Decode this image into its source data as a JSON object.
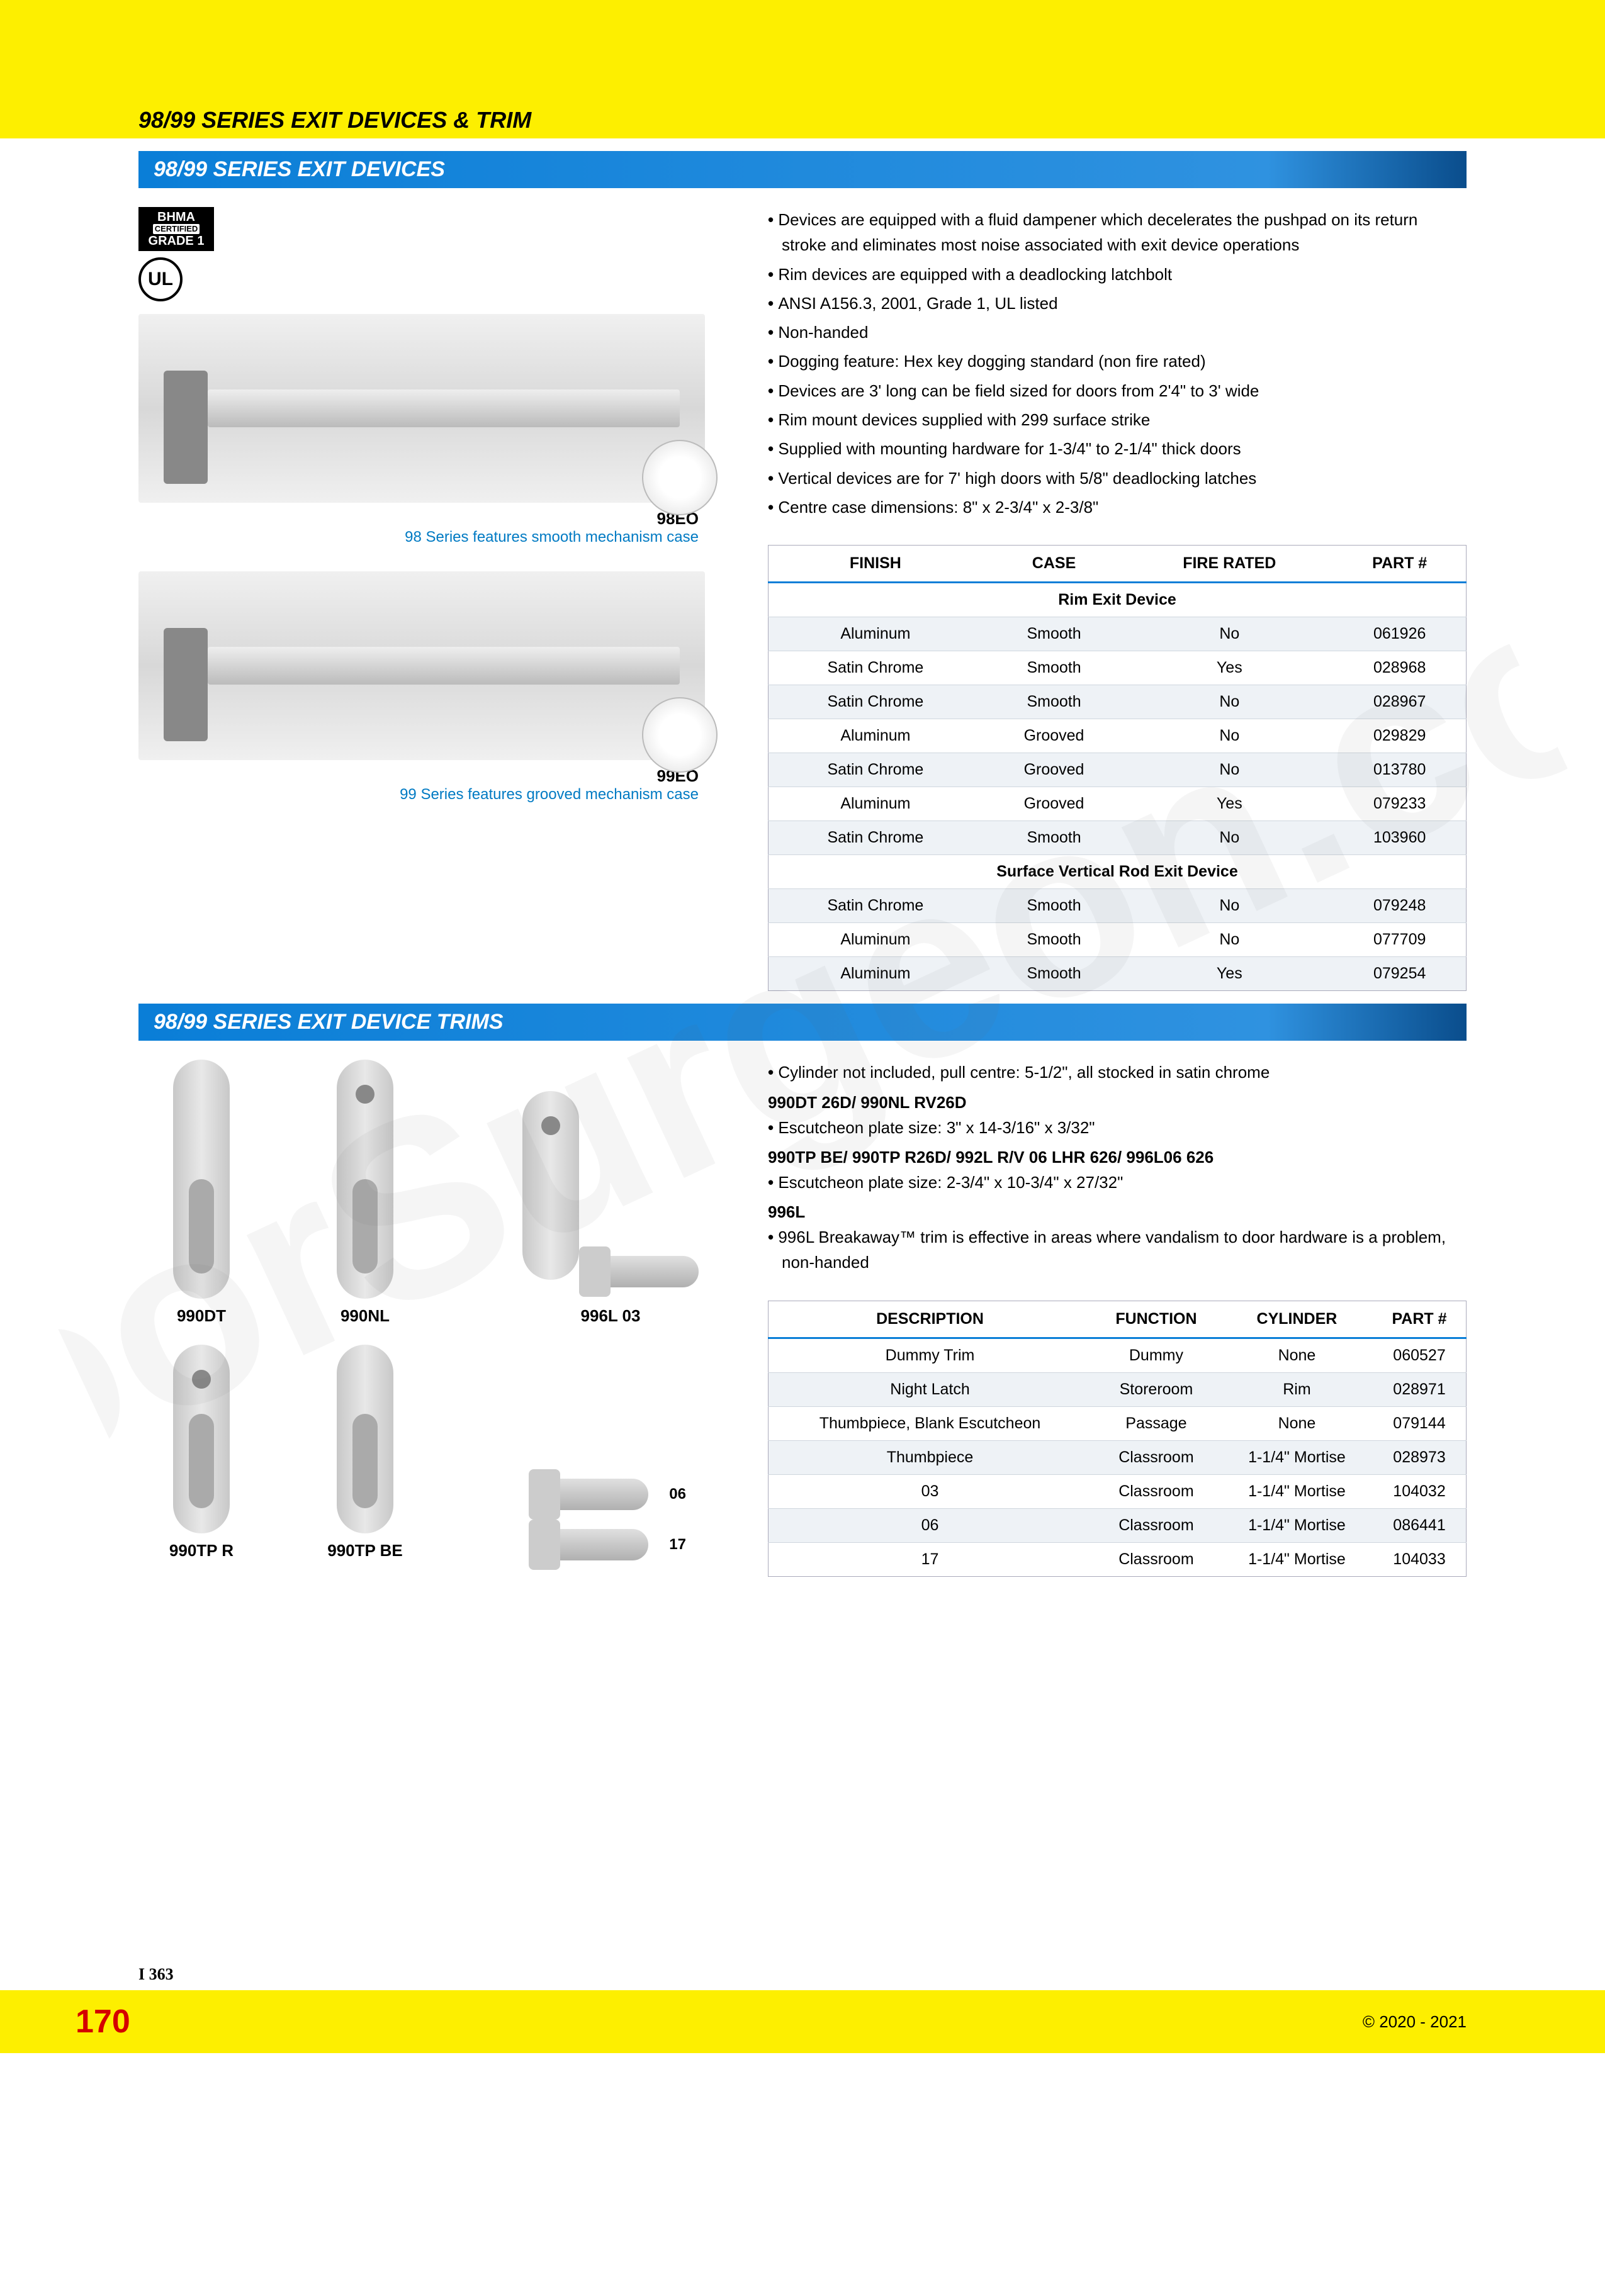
{
  "header": {
    "title": "98/99 SERIES EXIT DEVICES & TRIM"
  },
  "watermark": "DoorSurgeon.com",
  "section1": {
    "heading": "98/99 SERIES EXIT DEVICES",
    "badges": {
      "bhma_top": "BHMA",
      "bhma_mid": "CERTIFIED",
      "bhma_bot": "GRADE 1",
      "ul": "UL"
    },
    "img1_label": "98EO",
    "img1_caption": "98 Series features smooth mechanism case",
    "img2_label": "99EO",
    "img2_caption": "99 Series features grooved mechanism case",
    "bullets": [
      "Devices are equipped with a fluid dampener which decelerates the pushpad on its return stroke and eliminates most noise associated with exit device operations",
      "Rim devices are equipped with a deadlocking latchbolt",
      "ANSI A156.3, 2001, Grade 1, UL listed",
      "Non-handed",
      "Dogging feature: Hex key dogging standard (non fire rated)",
      "Devices are 3' long can be field sized for doors from 2'4\" to 3' wide",
      "Rim mount devices supplied with 299 surface strike",
      "Supplied with mounting hardware for 1-3/4\" to 2-1/4\" thick doors",
      "Vertical devices are for 7' high doors with 5/8\" deadlocking latches",
      "Centre case dimensions: 8\" x 2-3/4\" x 2-3/8\""
    ],
    "table": {
      "headers": [
        "FINISH",
        "CASE",
        "FIRE RATED",
        "PART #"
      ],
      "sub1": "Rim Exit Device",
      "rows1": [
        [
          "Aluminum",
          "Smooth",
          "No",
          "061926"
        ],
        [
          "Satin Chrome",
          "Smooth",
          "Yes",
          "028968"
        ],
        [
          "Satin Chrome",
          "Smooth",
          "No",
          "028967"
        ],
        [
          "Aluminum",
          "Grooved",
          "No",
          "029829"
        ],
        [
          "Satin Chrome",
          "Grooved",
          "No",
          "013780"
        ],
        [
          "Aluminum",
          "Grooved",
          "Yes",
          "079233"
        ],
        [
          "Satin Chrome",
          "Smooth",
          "No",
          "103960"
        ]
      ],
      "sub2": "Surface Vertical Rod Exit Device",
      "rows2": [
        [
          "Satin Chrome",
          "Smooth",
          "No",
          "079248"
        ],
        [
          "Aluminum",
          "Smooth",
          "No",
          "077709"
        ],
        [
          "Aluminum",
          "Smooth",
          "Yes",
          "079254"
        ]
      ]
    }
  },
  "section2": {
    "heading": "98/99 SERIES EXIT DEVICE TRIMS",
    "bullets_intro": "Cylinder not included, pull centre: 5-1/2\", all stocked in satin chrome",
    "h1": "990DT 26D/ 990NL RV26D",
    "b1": "Escutcheon plate size: 3\" x 14-3/16\" x 3/32\"",
    "h2": "990TP BE/ 990TP R26D/ 992L R/V 06 LHR 626/ 996L06 626",
    "b2": "Escutcheon plate size: 2-3/4\" x 10-3/4\" x 27/32\"",
    "h3": "996L",
    "b3": "996L Breakaway™ trim is effective in areas where vandalism to door hardware is a problem, non-handed",
    "labels": {
      "t1": "990DT",
      "t2": "990NL",
      "t3": "996L 03",
      "t4": "990TP R",
      "t5": "990TP BE",
      "l06": "06",
      "l17": "17"
    },
    "table": {
      "headers": [
        "DESCRIPTION",
        "FUNCTION",
        "CYLINDER",
        "PART #"
      ],
      "rows": [
        [
          "Dummy Trim",
          "Dummy",
          "None",
          "060527"
        ],
        [
          "Night Latch",
          "Storeroom",
          "Rim",
          "028971"
        ],
        [
          "Thumbpiece, Blank Escutcheon",
          "Passage",
          "None",
          "079144"
        ],
        [
          "Thumbpiece",
          "Classroom",
          "1-1/4\" Mortise",
          "028973"
        ],
        [
          "03",
          "Classroom",
          "1-1/4\" Mortise",
          "104032"
        ],
        [
          "06",
          "Classroom",
          "1-1/4\" Mortise",
          "086441"
        ],
        [
          "17",
          "Classroom",
          "1-1/4\" Mortise",
          "104033"
        ]
      ]
    }
  },
  "footer": {
    "index": "I 363",
    "page": "170",
    "copyright": "© 2020 - 2021"
  }
}
